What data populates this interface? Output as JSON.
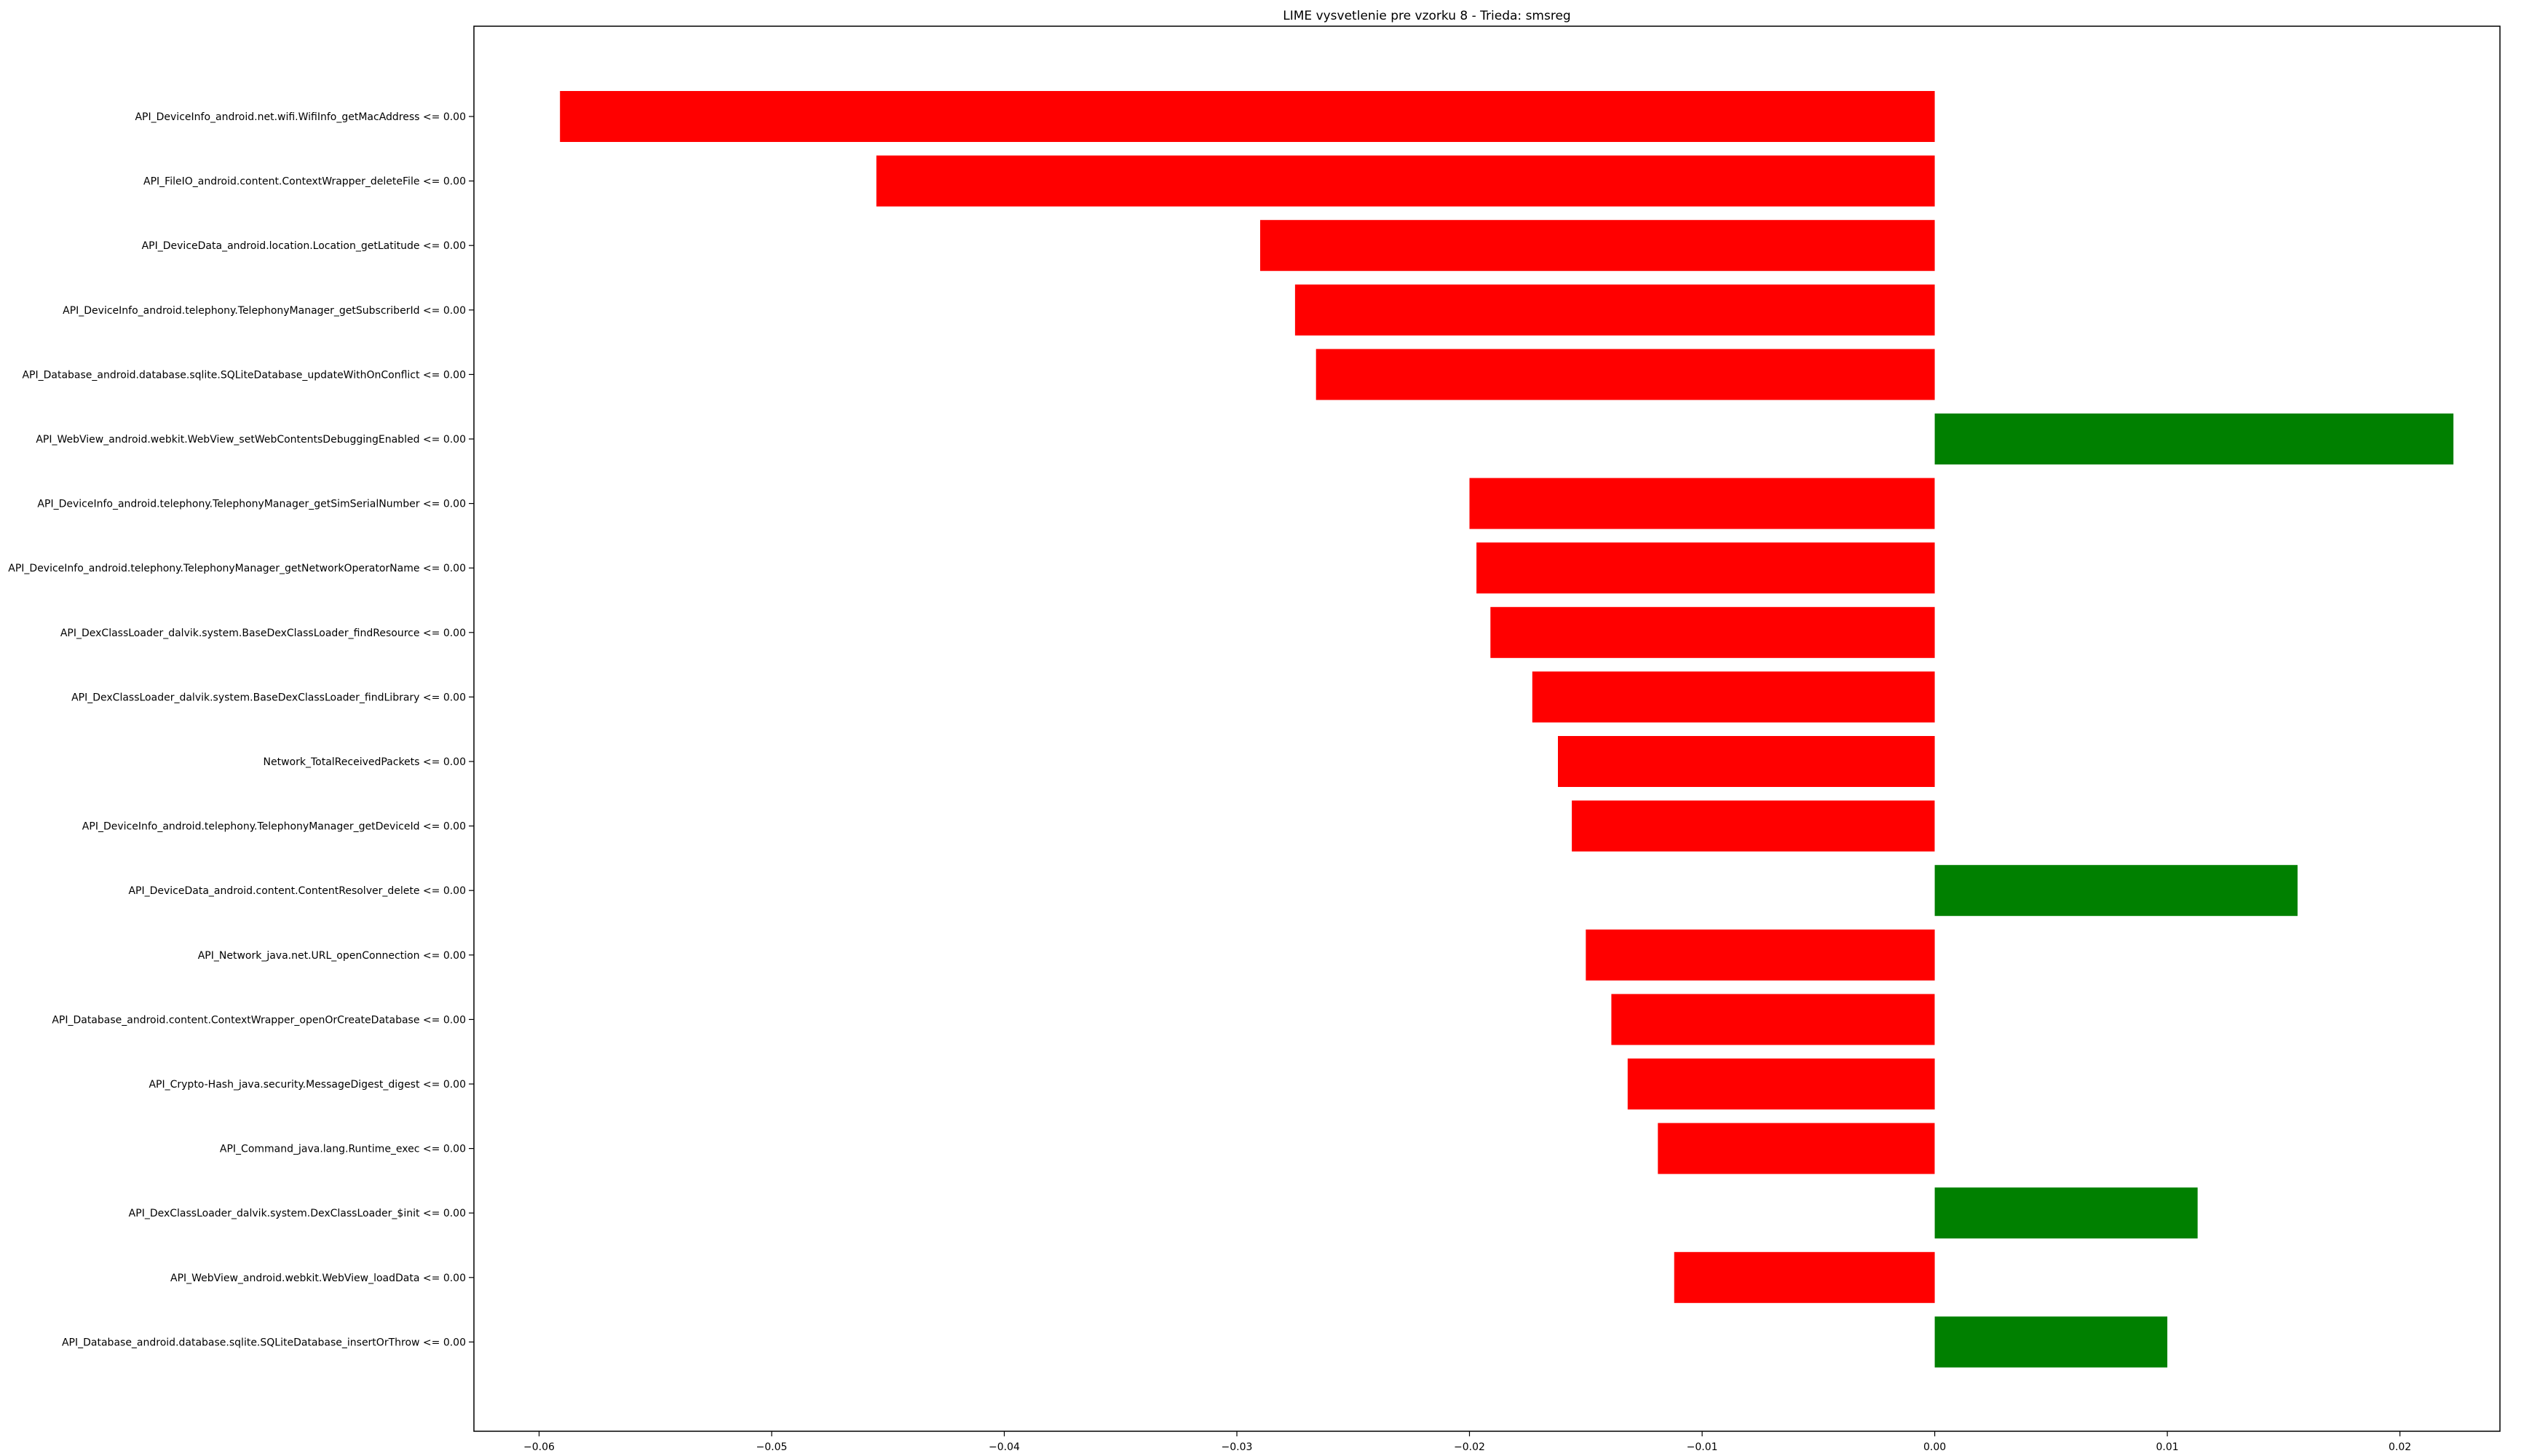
{
  "chart_data": {
    "type": "bar",
    "orientation": "horizontal",
    "title": "LIME vysvetlenie pre vzorku 8 - Trieda: smsreg",
    "xlabel": "",
    "ylabel": "",
    "xlim": [
      -0.0628,
      0.0243
    ],
    "x_ticks": [
      -0.06,
      -0.05,
      -0.04,
      -0.03,
      -0.02,
      -0.01,
      0.0,
      0.01,
      0.02
    ],
    "x_tick_labels": [
      "−0.06",
      "−0.05",
      "−0.04",
      "−0.03",
      "−0.02",
      "−0.01",
      "0.00",
      "0.01",
      "0.02"
    ],
    "grid": false,
    "legend": false,
    "colors": {
      "positive": "#008000",
      "negative": "#ff0000",
      "axes": "#000000"
    },
    "categories": [
      "API_DeviceInfo_android.net.wifi.WifiInfo_getMacAddress <= 0.00",
      "API_FileIO_android.content.ContextWrapper_deleteFile <= 0.00",
      "API_DeviceData_android.location.Location_getLatitude <= 0.00",
      "API_DeviceInfo_android.telephony.TelephonyManager_getSubscriberId <= 0.00",
      "API_Database_android.database.sqlite.SQLiteDatabase_updateWithOnConflict <= 0.00",
      "API_WebView_android.webkit.WebView_setWebContentsDebuggingEnabled <= 0.00",
      "API_DeviceInfo_android.telephony.TelephonyManager_getSimSerialNumber <= 0.00",
      "API_DeviceInfo_android.telephony.TelephonyManager_getNetworkOperatorName <= 0.00",
      "API_DexClassLoader_dalvik.system.BaseDexClassLoader_findResource <= 0.00",
      "API_DexClassLoader_dalvik.system.BaseDexClassLoader_findLibrary <= 0.00",
      "Network_TotalReceivedPackets <= 0.00",
      "API_DeviceInfo_android.telephony.TelephonyManager_getDeviceId <= 0.00",
      "API_DeviceData_android.content.ContentResolver_delete <= 0.00",
      "API_Network_java.net.URL_openConnection <= 0.00",
      "API_Database_android.content.ContextWrapper_openOrCreateDatabase <= 0.00",
      "API_Crypto-Hash_java.security.MessageDigest_digest <= 0.00",
      "API_Command_java.lang.Runtime_exec <= 0.00",
      "API_DexClassLoader_dalvik.system.DexClassLoader_$init <= 0.00",
      "API_WebView_android.webkit.WebView_loadData <= 0.00",
      "API_Database_android.database.sqlite.SQLiteDatabase_insertOrThrow <= 0.00"
    ],
    "values": [
      -0.0591,
      -0.0455,
      -0.029,
      -0.0275,
      -0.0266,
      0.0223,
      -0.02,
      -0.0197,
      -0.0191,
      -0.0173,
      -0.0162,
      -0.0156,
      0.0156,
      -0.015,
      -0.0139,
      -0.0132,
      -0.0119,
      0.0113,
      -0.0112,
      0.01
    ]
  }
}
